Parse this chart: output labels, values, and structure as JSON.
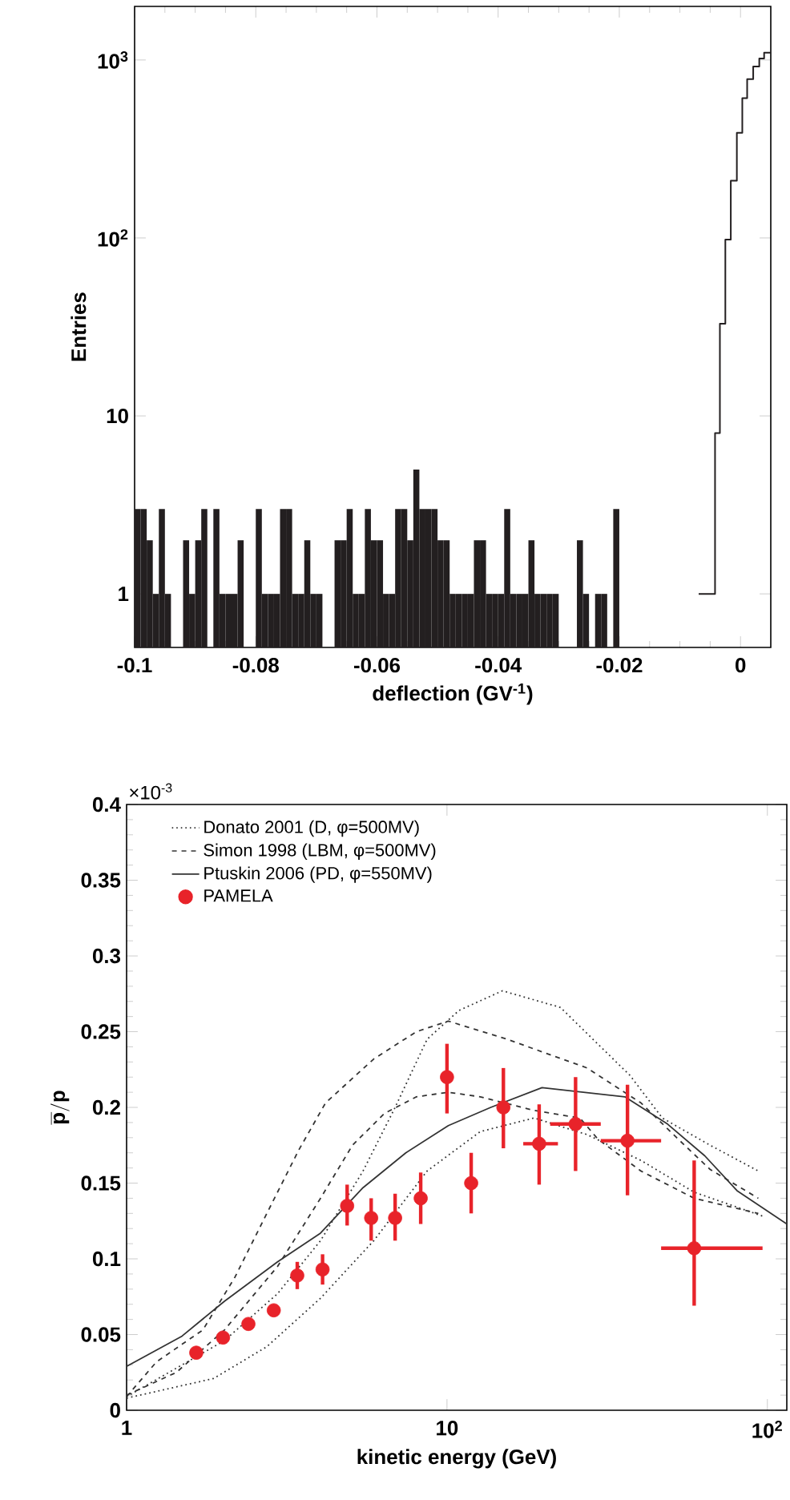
{
  "chart_data": [
    {
      "type": "histogram",
      "xlabel": "deflection (GV$^{-1}$)",
      "ylabel": "Entries",
      "log": "y",
      "xlim": [
        -0.1,
        0.005
      ],
      "ylim": [
        0.5,
        2000
      ],
      "xticks": [
        -0.1,
        -0.08,
        -0.06,
        -0.04,
        -0.02,
        0
      ],
      "yticks": [
        1,
        10,
        {
          "value": 100,
          "label": "10$^{2}$"
        },
        {
          "value": 1000,
          "label": "10$^{3}$"
        }
      ],
      "series": [
        {
          "type": "histogram",
          "color": "#231f20",
          "bins": [
            -0.1,
            -0.099,
            -0.098,
            -0.097,
            -0.096,
            -0.095,
            -0.094,
            -0.093,
            -0.092,
            -0.091,
            -0.09,
            -0.089,
            -0.088,
            -0.087,
            -0.086,
            -0.085,
            -0.084,
            -0.083,
            -0.082,
            -0.081,
            -0.08,
            -0.079,
            -0.078,
            -0.077,
            -0.076,
            -0.075,
            -0.074,
            -0.073,
            -0.072,
            -0.071,
            -0.07,
            -0.069,
            -0.068,
            -0.067,
            -0.066,
            -0.065,
            -0.064,
            -0.063,
            -0.062,
            -0.061,
            -0.06,
            -0.059,
            -0.058,
            -0.057,
            -0.056,
            -0.055,
            -0.054,
            -0.053,
            -0.052,
            -0.051,
            -0.05,
            -0.049,
            -0.048,
            -0.047,
            -0.046,
            -0.045,
            -0.044,
            -0.043,
            -0.042,
            -0.041,
            -0.04,
            -0.039,
            -0.038,
            -0.037,
            -0.036,
            -0.035,
            -0.034,
            -0.033,
            -0.032,
            -0.031,
            -0.03,
            -0.029,
            -0.028,
            -0.027,
            -0.026,
            -0.025,
            -0.024,
            -0.023,
            -0.022,
            -0.021,
            -0.02
          ],
          "values": [
            3,
            3,
            2,
            1,
            3,
            1,
            null,
            null,
            2,
            1,
            2,
            3,
            null,
            3,
            1,
            1,
            1,
            2,
            null,
            null,
            3,
            1,
            1,
            1,
            3,
            3,
            1,
            1,
            2,
            1,
            1,
            null,
            null,
            2,
            2,
            3,
            1,
            1,
            3,
            2,
            2,
            1,
            1,
            3,
            3,
            2,
            5,
            3,
            3,
            3,
            2,
            2,
            1,
            1,
            1,
            1,
            2,
            2,
            1,
            1,
            1,
            3,
            1,
            1,
            1,
            2,
            1,
            1,
            1,
            1,
            null,
            null,
            null,
            2,
            1,
            null,
            1,
            1,
            null,
            3
          ]
        },
        {
          "type": "step",
          "color": "#231f20",
          "x": [
            -0.0069,
            -0.0055,
            -0.0042,
            -0.0034,
            -0.0025,
            -0.0016,
            -0.0006,
            0.0003,
            0.0011,
            0.0021,
            0.0031,
            0.0039,
            0.005
          ],
          "values": [
            1,
            1,
            8,
            33,
            98,
            210,
            390,
            610,
            780,
            920,
            1020,
            1100,
            1100
          ]
        }
      ]
    },
    {
      "type": "line",
      "xlabel": "kinetic energy (GeV)",
      "ylabel": "\\mathbf{\\overline{p}/p}",
      "log": "x",
      "xlim": [
        1,
        115
      ],
      "ylim": [
        0,
        0.4
      ],
      "xticks": [
        1,
        10,
        {
          "value": 100,
          "label": "10$^{2}$"
        }
      ],
      "yticks": [
        0,
        0.05,
        0.1,
        0.15,
        0.2,
        0.25,
        0.3,
        0.35,
        0.4
      ],
      "annotations": [
        "×10$^{-3}$"
      ],
      "legend": "top left",
      "series": [
        {
          "name": "Donato 2001 (D, φ=500MV)",
          "color": "#333333",
          "line_style": "dotted",
          "x": [
            1,
            2.02,
            2.96,
            4.03,
            5.47,
            6.89,
            8.67,
            10.9,
            14.9,
            22.6,
            37.3,
            47,
            66.3,
            93.7
          ],
          "values": [
            0.009,
            0.046,
            0.077,
            0.112,
            0.158,
            0.2,
            0.245,
            0.264,
            0.277,
            0.266,
            0.221,
            0.193,
            0.175,
            0.158
          ]
        },
        {
          "color": "#333333",
          "line_style": "dotted",
          "x": [
            1,
            1.87,
            2.74,
            4.03,
            5.91,
            8.67,
            12.7,
            18.7,
            27.4,
            40.3,
            59.1,
            97.3
          ],
          "values": [
            0.008,
            0.021,
            0.042,
            0.074,
            0.112,
            0.158,
            0.184,
            0.193,
            0.182,
            0.165,
            0.144,
            0.128
          ]
        },
        {
          "name": "Simon 1998 (LBM, φ=500MV)",
          "color": "#333333",
          "line_style": "dashed",
          "x": [
            1,
            1.24,
            1.73,
            2.18,
            2.74,
            3.45,
            4.18,
            5.91,
            8.03,
            10.1,
            15.4,
            27.4,
            40.3,
            52.7,
            66.3,
            93.7
          ],
          "values": [
            0.009,
            0.032,
            0.053,
            0.088,
            0.13,
            0.172,
            0.203,
            0.232,
            0.25,
            0.257,
            0.245,
            0.226,
            0.203,
            0.179,
            0.159,
            0.14
          ]
        },
        {
          "color": "#333333",
          "line_style": "dashed",
          "x": [
            1,
            1.43,
            2.02,
            2.96,
            4.03,
            5.07,
            6.38,
            8.03,
            10.1,
            12.7,
            18.7,
            26,
            29.6,
            40.3,
            59.1,
            93.7
          ],
          "values": [
            0.01,
            0.025,
            0.053,
            0.095,
            0.14,
            0.175,
            0.196,
            0.207,
            0.21,
            0.207,
            0.198,
            0.193,
            0.179,
            0.158,
            0.14,
            0.13
          ]
        },
        {
          "name": "Ptuskin 2006 (PD, φ=550MV)",
          "color": "#333333",
          "line_style": "solid",
          "x": [
            1,
            1.49,
            2.02,
            2.96,
            4.03,
            5.47,
            7.44,
            10.1,
            13.7,
            19.8,
            35.9,
            48.8,
            63.8,
            80.4,
            115
          ],
          "values": [
            0.029,
            0.049,
            0.072,
            0.098,
            0.117,
            0.147,
            0.17,
            0.188,
            0.2,
            0.213,
            0.207,
            0.189,
            0.168,
            0.145,
            0.123
          ]
        },
        {
          "name": "PAMELA",
          "type": "scatter",
          "color": "#e8232a",
          "x": [
            1.65,
            2.0,
            2.4,
            2.88,
            3.41,
            4.09,
            4.88,
            5.8,
            6.89,
            8.28,
            10.0,
            11.9,
            15.0,
            19.4,
            25.2,
            36.6,
            59.1
          ],
          "values": [
            0.038,
            0.048,
            0.057,
            0.066,
            0.089,
            0.093,
            0.135,
            0.127,
            0.127,
            0.14,
            0.22,
            0.15,
            0.2,
            0.176,
            0.189,
            0.178,
            0.107
          ],
          "errors": [
            null,
            null,
            null,
            null,
            [
              0.08,
              0.098
            ],
            [
              0.083,
              0.103
            ],
            [
              0.122,
              0.149
            ],
            [
              0.112,
              0.14
            ],
            [
              0.112,
              0.143
            ],
            [
              0.123,
              0.157
            ],
            [
              0.196,
              0.242
            ],
            [
              0.13,
              0.17
            ],
            [
              0.173,
              0.226
            ],
            [
              0.149,
              0.202
            ],
            [
              0.158,
              0.22
            ],
            [
              0.142,
              0.215
            ],
            [
              0.069,
              0.165
            ]
          ],
          "xerrors": [
            null,
            null,
            null,
            null,
            null,
            null,
            null,
            null,
            null,
            null,
            null,
            null,
            null,
            [
              17.3,
              22.2
            ],
            [
              21,
              30.2
            ],
            [
              30.2,
              46.6
            ],
            [
              46.6,
              96.6
            ]
          ]
        }
      ]
    }
  ]
}
